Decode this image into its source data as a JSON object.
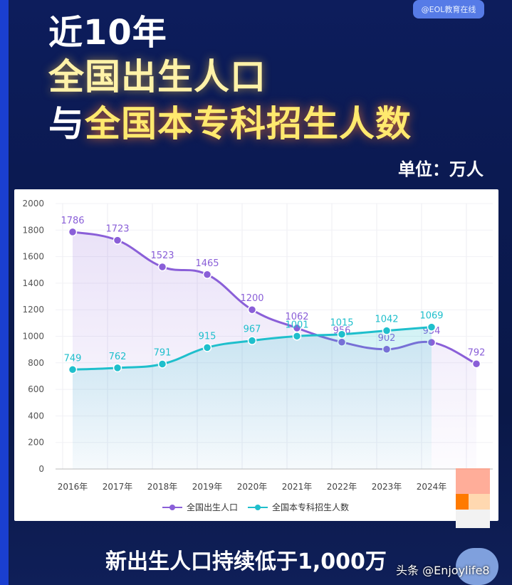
{
  "header": {
    "watermark": "@EOL教育在线",
    "title_line1": "近10年",
    "title_line2": "全国出生人口",
    "title_line3_prefix": "与",
    "title_line3_highlight": "全国本专科招生人数",
    "unit": "单位：万人"
  },
  "footer": {
    "caption": "新出生人口持续低于1,000万",
    "credit": "头条 @Enjoylife8"
  },
  "colors": {
    "births": "#8a5fd8",
    "enrollment": "#1fbfcc",
    "background": "#0b1a52",
    "highlight": "#ffe96e"
  },
  "chart_data": {
    "type": "line",
    "categories": [
      "2016年",
      "2017年",
      "2018年",
      "2019年",
      "2020年",
      "2021年",
      "2022年",
      "2023年",
      "2024年",
      ""
    ],
    "x_tick_labels": [
      "2016年",
      "2017年",
      "2018年",
      "2019年",
      "2020年",
      "2021年",
      "2022年",
      "2023年",
      "2024年"
    ],
    "ylim": [
      0,
      2000
    ],
    "yticks": [
      0,
      200,
      400,
      600,
      800,
      1000,
      1200,
      1400,
      1600,
      1800,
      2000
    ],
    "grid": true,
    "legend_position": "bottom",
    "series": [
      {
        "name": "全国出生人口",
        "values": [
          1786,
          1723,
          1523,
          1465,
          1200,
          1062,
          956,
          902,
          954,
          792
        ],
        "labels": [
          "1786",
          "1723",
          "1523",
          "1465",
          "1200",
          "1062",
          "956",
          "902",
          "954",
          "792"
        ]
      },
      {
        "name": "全国本专科招生人数",
        "values": [
          749,
          762,
          791,
          915,
          967,
          1001,
          1015,
          1042,
          1069,
          null
        ],
        "labels": [
          "749",
          "762",
          "791",
          "915",
          "967",
          "1001",
          "1015",
          "1042",
          "1069",
          ""
        ]
      }
    ]
  }
}
